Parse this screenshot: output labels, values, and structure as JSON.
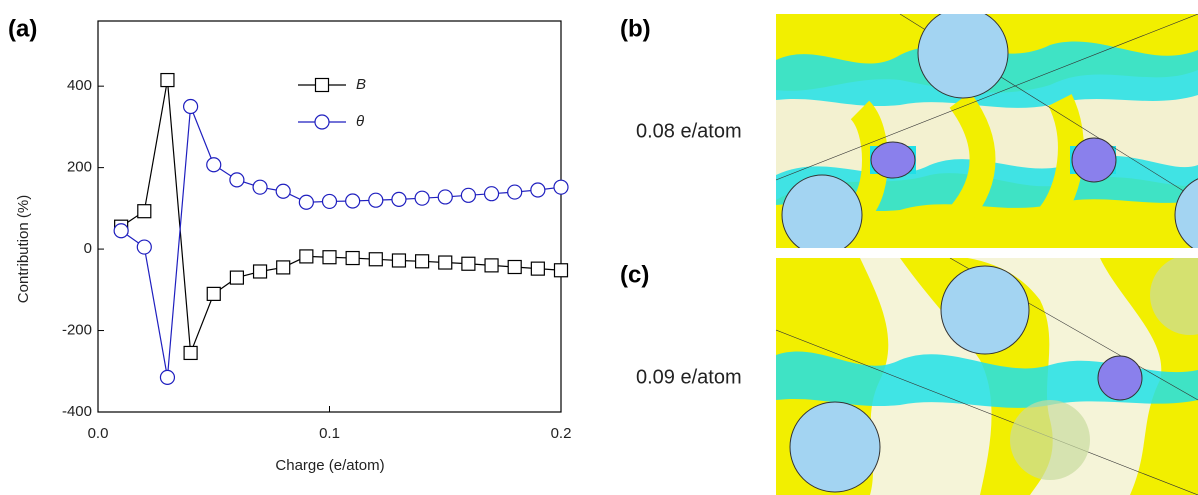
{
  "chart_data": {
    "type": "line",
    "panel_label": "(a)",
    "x_label": "Charge (e/atom)",
    "y_label": "Contribution (%)",
    "x": [
      0.01,
      0.02,
      0.03,
      0.04,
      0.05,
      0.06,
      0.07,
      0.08,
      0.09,
      0.1,
      0.11,
      0.12,
      0.13,
      0.14,
      0.15,
      0.16,
      0.17,
      0.18,
      0.19,
      0.2
    ],
    "series": [
      {
        "name": "B",
        "color": "#000000",
        "marker": "square",
        "values": [
          55,
          93,
          415,
          -255,
          -110,
          -70,
          -55,
          -45,
          -18,
          -20,
          -22,
          -25,
          -28,
          -30,
          -33,
          -36,
          -40,
          -44,
          -48,
          -52
        ]
      },
      {
        "name": "θ",
        "color": "#1f1fbf",
        "marker": "circle",
        "values": [
          45,
          5,
          -315,
          350,
          207,
          170,
          152,
          142,
          115,
          117,
          118,
          120,
          122,
          125,
          128,
          132,
          136,
          140,
          145,
          152
        ]
      }
    ],
    "xlim": [
      0,
      0.2
    ],
    "xticks": [
      {
        "value": 0,
        "label": "0.0"
      },
      0.1,
      0.2
    ],
    "ylim": [
      -400,
      560
    ],
    "yticks": [
      -400,
      -200,
      0,
      200,
      400
    ],
    "legend": "top"
  },
  "panels": [
    {
      "label": "(b)",
      "annotation": "0.08 e/atom"
    },
    {
      "label": "(c)",
      "annotation": "0.09 e/atom"
    }
  ]
}
